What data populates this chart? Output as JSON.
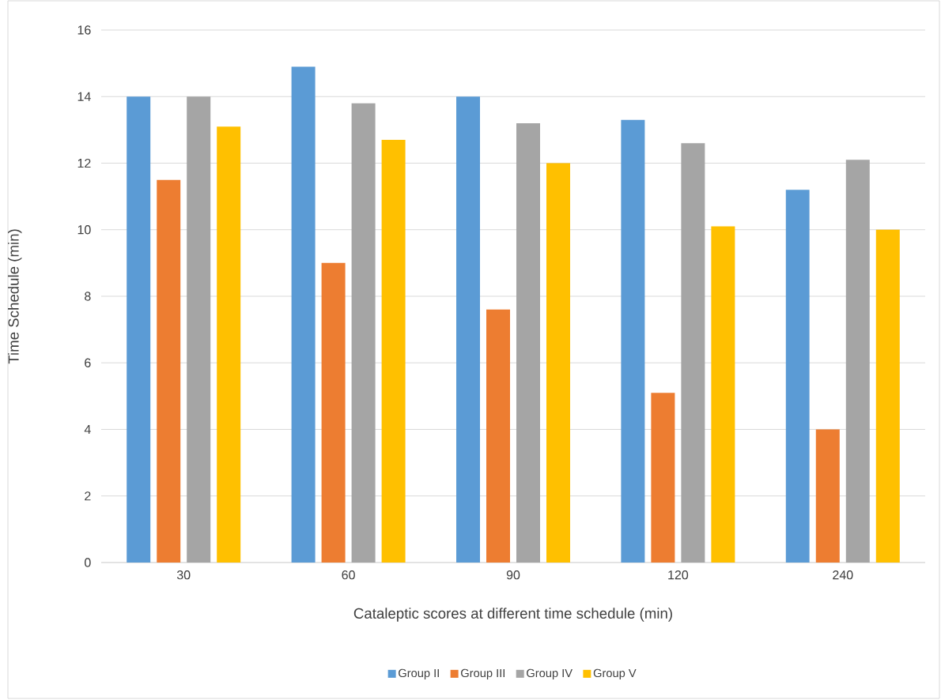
{
  "chart_data": {
    "type": "bar",
    "xlabel": "Cataleptic scores at different time schedule (min)",
    "ylabel": "Time Schedule (min)",
    "categories": [
      "30",
      "60",
      "90",
      "120",
      "240"
    ],
    "series": [
      {
        "name": "Group II",
        "color": "#5b9bd5",
        "values": [
          14.0,
          14.9,
          14.0,
          13.3,
          11.2
        ]
      },
      {
        "name": "Group III",
        "color": "#ed7d31",
        "values": [
          11.5,
          9.0,
          7.6,
          5.1,
          4.0
        ]
      },
      {
        "name": "Group IV",
        "color": "#a5a5a5",
        "values": [
          14.0,
          13.8,
          13.2,
          12.6,
          12.1
        ]
      },
      {
        "name": "Group V",
        "color": "#ffc000",
        "values": [
          13.1,
          12.7,
          12.0,
          10.1,
          10.0
        ]
      }
    ],
    "ylim": [
      0,
      16
    ],
    "yticks": [
      0,
      2,
      4,
      6,
      8,
      10,
      12,
      14,
      16
    ],
    "grid": "y",
    "legend": "bottom"
  }
}
